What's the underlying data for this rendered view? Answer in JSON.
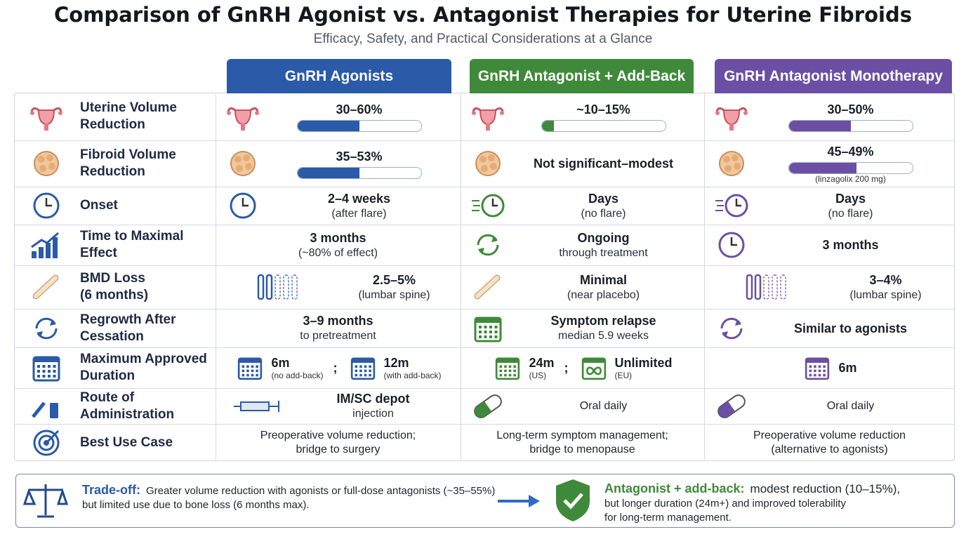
{
  "header": {
    "title": "Comparison of GnRH Agonist vs. Antagonist Therapies for Uterine Fibroids",
    "subtitle": "Efficacy, Safety, and Practical Considerations at a Glance"
  },
  "columns": [
    "GnRH Agonists",
    "GnRH Antagonist + Add-Back",
    "GnRH Antagonist Monotherapy"
  ],
  "rows": [
    {
      "label": [
        "Uterine Volume",
        "Reduction"
      ],
      "cells": [
        {
          "main": "30–60%"
        },
        {
          "main": "~10–15%"
        },
        {
          "main": "30–50%"
        }
      ]
    },
    {
      "label": [
        "Fibroid Volume",
        "Reduction"
      ],
      "cells": [
        {
          "main": "35–53%"
        },
        {
          "main": "Not significant–modest"
        },
        {
          "main": "45–49%",
          "sub": "(linzagolix 200 mg)"
        }
      ]
    },
    {
      "label": [
        "Onset"
      ],
      "cells": [
        {
          "main": "2–4 weeks",
          "sub": "(after flare)"
        },
        {
          "main": "Days",
          "sub": "(no flare)"
        },
        {
          "main": "Days",
          "sub": "(no flare)"
        }
      ]
    },
    {
      "label": [
        "Time to Maximal",
        "Effect"
      ],
      "cells": [
        {
          "main": "3 months",
          "sub": "(~80% of effect)"
        },
        {
          "main": "Ongoing",
          "sub": "through treatment"
        },
        {
          "main": "3 months"
        }
      ]
    },
    {
      "label": [
        "BMD Loss",
        "(6 months)"
      ],
      "cells": [
        {
          "main": "2.5–5%",
          "sub": "(lumbar spine)"
        },
        {
          "main": "Minimal",
          "sub": "(near placebo)"
        },
        {
          "main": "3–4%",
          "sub": "(lumbar spine)"
        }
      ]
    },
    {
      "label": [
        "Regrowth After",
        "Cessation"
      ],
      "cells": [
        {
          "main": "3–9 months",
          "sub": "to pretreatment"
        },
        {
          "main": "Symptom relapse",
          "sub": "median 5.9 weeks"
        },
        {
          "main": "Similar to agonists"
        }
      ]
    },
    {
      "label": [
        "Maximum Approved",
        "Duration"
      ],
      "cells": [
        {
          "items": [
            {
              "main": "6m",
              "sub": "(no add-back)"
            },
            {
              "main": "12m",
              "sub": "(with add-back)"
            }
          ],
          "separator": ";"
        },
        {
          "items": [
            {
              "main": "24m",
              "sub": "(US)"
            },
            {
              "main": "Unlimited",
              "sub": "(EU)"
            }
          ],
          "separator": ";"
        },
        {
          "items": [
            {
              "main": "6m"
            }
          ]
        }
      ]
    },
    {
      "label": [
        "Route of",
        "Administration"
      ],
      "cells": [
        {
          "main": "IM/SC depot",
          "sub": "injection"
        },
        {
          "lines": [
            "Oral daily"
          ]
        },
        {
          "lines": [
            "Oral daily"
          ]
        }
      ]
    },
    {
      "label": [
        "Best Use Case"
      ],
      "cells": [
        {
          "lines": [
            "Preoperative volume reduction;",
            "bridge to surgery"
          ]
        },
        {
          "lines": [
            "Long-term symptom management;",
            "bridge to menopause"
          ]
        },
        {
          "lines": [
            "Preoperative volume reduction",
            "(alternative to agonists)"
          ]
        }
      ]
    }
  ],
  "footer": {
    "left": {
      "label": "Trade-off:",
      "lines": [
        "Greater volume reduction with agonists or full-dose antagonists (~35–55%)",
        "but limited use due to bone loss (6 months max)."
      ]
    },
    "right": {
      "label": "Antagonist + add-back:",
      "lines": [
        "modest reduction (10–15%),",
        "but longer duration (24m+) and improved tolerability",
        "for long-term management."
      ]
    }
  }
}
